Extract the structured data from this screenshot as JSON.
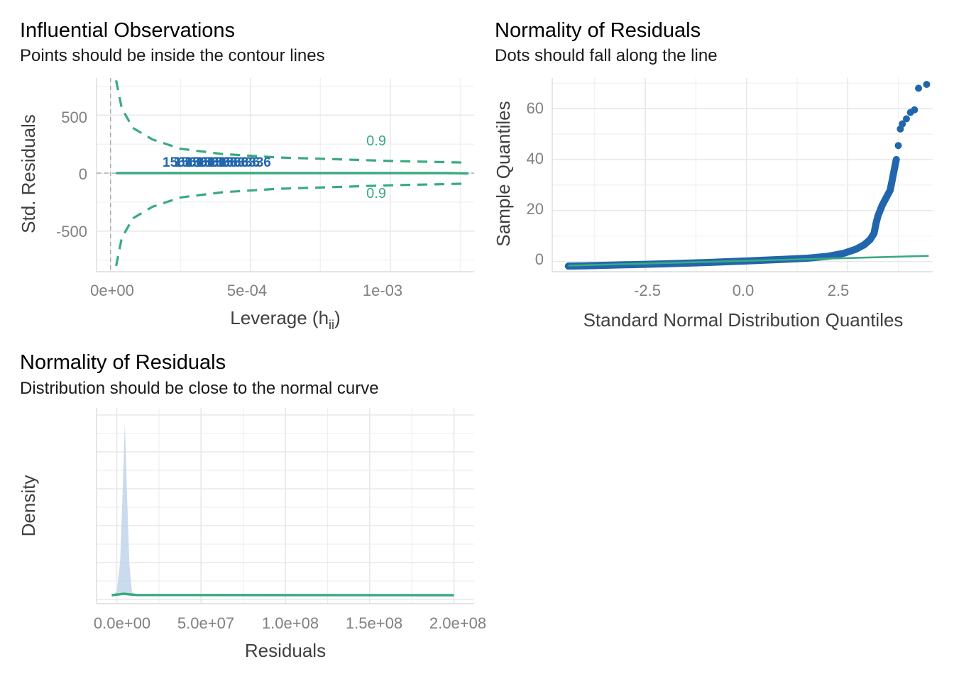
{
  "panels": [
    {
      "id": "influential",
      "title": "Influential Observations",
      "subtitle": "Points should be inside the contour lines",
      "xlabel_main": "Leverage (h",
      "xlabel_sub": "ii",
      "xlabel_tail": ")",
      "ylabel": "Std. Residuals",
      "x_ticks": [
        "0e+00",
        "5e-04",
        "1e-03"
      ],
      "y_ticks": [
        "500",
        "0",
        "-500"
      ]
    },
    {
      "id": "qq",
      "title": "Normality of Residuals",
      "subtitle": "Dots should fall along the line",
      "xlabel": "Standard Normal Distribution Quantiles",
      "ylabel": "Sample Quantiles",
      "x_ticks": [
        "-2.5",
        "0.0",
        "2.5"
      ],
      "y_ticks": [
        "0",
        "20",
        "40",
        "60"
      ]
    },
    {
      "id": "density",
      "title": "Normality of Residuals",
      "subtitle": "Distribution should be close to the normal curve",
      "xlabel": "Residuals",
      "ylabel": "Density",
      "x_ticks": [
        "0.0e+00",
        "5.0e+07",
        "1.0e+08",
        "1.5e+08",
        "2.0e+08"
      ]
    }
  ],
  "colors": {
    "accent_green": "#3aaa80",
    "point_blue": "#2166ac",
    "density_fill": "#bcd2e8",
    "grid": "#e8e8e8",
    "ref_line": "#a9a9a9"
  },
  "chart_data": [
    {
      "type": "scatter",
      "title": "Influential Observations",
      "subtitle": "Points should be inside the contour lines",
      "xlabel": "Leverage (hii)",
      "ylabel": "Std. Residuals",
      "xlim": [
        -5e-05,
        0.0013
      ],
      "ylim": [
        -850,
        820
      ],
      "x_ticks": [
        0,
        0.0005,
        0.001
      ],
      "y_ticks": [
        -500,
        0,
        500
      ],
      "point_label_text": "1568336",
      "point_labels_x": [
        0.00028,
        0.00032,
        0.00036,
        0.0004,
        0.00044,
        0.00048
      ],
      "point_labels_y": 55,
      "fit_line": {
        "x": [
          2e-05,
          0.0012,
          0.00128
        ],
        "y": [
          0,
          0,
          -3
        ]
      },
      "cook_contours": [
        {
          "label": "0.9",
          "label_at": [
            0.00095,
            240
          ],
          "x": [
            2e-05,
            4e-05,
            8e-05,
            0.00015,
            0.00025,
            0.0004,
            0.0006,
            0.0008,
            0.001,
            0.00128
          ],
          "y": [
            800,
            560,
            390,
            290,
            210,
            165,
            135,
            120,
            105,
            90
          ]
        },
        {
          "label": "0.9",
          "label_at": [
            0.00095,
            -215
          ],
          "x": [
            2e-05,
            4e-05,
            8e-05,
            0.00015,
            0.00025,
            0.0004,
            0.0006,
            0.0008,
            0.001,
            0.00128
          ],
          "y": [
            -800,
            -560,
            -390,
            -290,
            -210,
            -165,
            -135,
            -120,
            -105,
            -90
          ]
        }
      ],
      "reference_lines": {
        "h": 0,
        "v": 0
      },
      "grid": true
    },
    {
      "type": "scatter",
      "title": "Normality of Residuals",
      "subtitle": "Dots should fall along the line",
      "xlabel": "Standard Normal Distribution Quantiles",
      "ylabel": "Sample Quantiles",
      "xlim": [
        -4.8,
        4.6
      ],
      "ylim": [
        -4,
        72
      ],
      "x_ticks": [
        -2.5,
        0,
        2.5
      ],
      "y_ticks": [
        0,
        20,
        40,
        60
      ],
      "points_curve": {
        "x": [
          -4.4,
          -4.0,
          -3.0,
          -2.0,
          -1.0,
          0.0,
          1.0,
          1.5,
          2.0,
          2.4,
          2.7,
          2.9,
          3.05,
          3.15,
          3.2,
          3.25,
          3.3,
          3.35,
          3.45,
          3.55,
          3.6,
          3.65,
          3.7
        ],
        "y": [
          -1.8,
          -1.7,
          -1.3,
          -0.9,
          -0.4,
          0.2,
          0.9,
          1.3,
          2.0,
          3.2,
          4.8,
          6.5,
          8.5,
          11.0,
          15.0,
          18.0,
          20.0,
          22.0,
          25.0,
          28.0,
          32.0,
          36.0,
          40.0
        ]
      },
      "points_extra": {
        "x": [
          -4.4,
          3.75,
          3.8,
          3.85,
          3.95,
          4.05,
          4.15,
          4.25,
          4.45
        ],
        "y": [
          -1.8,
          45.5,
          52.0,
          54.0,
          56.0,
          58.5,
          59.5,
          68.0,
          69.5
        ]
      },
      "reference_line": {
        "x": [
          -4.4,
          4.5
        ],
        "y": [
          -1.6,
          2.2
        ]
      },
      "grid": true
    },
    {
      "type": "area",
      "title": "Normality of Residuals",
      "subtitle": "Distribution should be close to the normal curve",
      "xlabel": "Residuals",
      "ylabel": "Density",
      "xlim": [
        -12000000,
        212000000
      ],
      "ylim": [
        0,
        1.05
      ],
      "x_ticks": [
        0,
        50000000,
        100000000,
        150000000,
        200000000
      ],
      "density_curve": {
        "x": [
          -3000000,
          0,
          2000000,
          3500000,
          4800000,
          6000000,
          7500000,
          9000000,
          11000000
        ],
        "y": [
          0,
          0.02,
          0.2,
          0.6,
          1.0,
          0.6,
          0.18,
          0.02,
          0
        ]
      },
      "normal_curve": {
        "x": [
          -3000000,
          1000000,
          4000000,
          8000000,
          12000000,
          200000000
        ],
        "y": [
          0,
          0.004,
          0.008,
          0.004,
          0.001,
          0
        ]
      },
      "grid": true
    }
  ]
}
